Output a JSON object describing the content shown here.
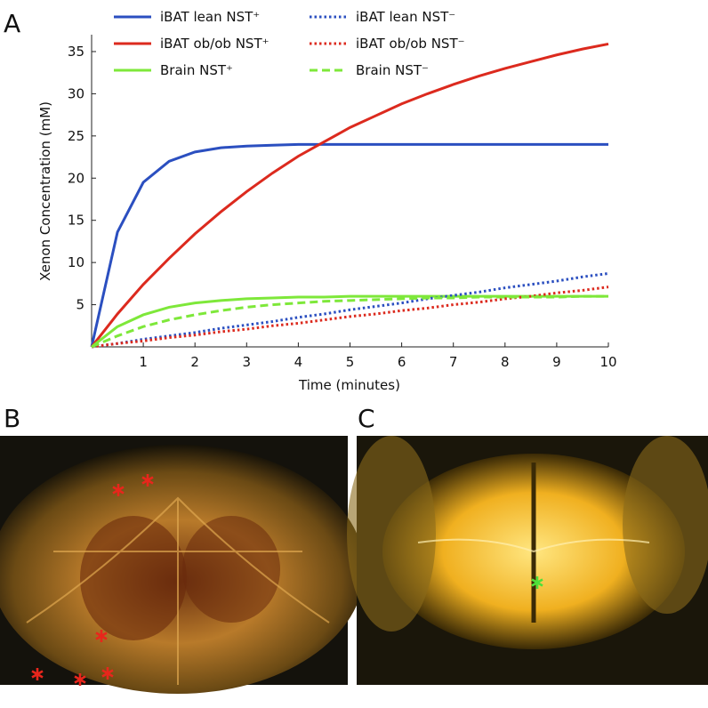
{
  "panels": {
    "a": "A",
    "b": "B",
    "c": "C"
  },
  "chart_data": {
    "type": "line",
    "xlabel": "Time (minutes)",
    "ylabel": "Xenon Concentration (mM)",
    "x": [
      0,
      0.5,
      1,
      1.5,
      2,
      2.5,
      3,
      3.5,
      4,
      4.5,
      5,
      5.5,
      6,
      6.5,
      7,
      7.5,
      8,
      8.5,
      9,
      9.5,
      10
    ],
    "xlim": [
      0,
      10
    ],
    "xticks": [
      1,
      2,
      3,
      4,
      5,
      6,
      7,
      8,
      9,
      10
    ],
    "ylim": [
      0,
      37
    ],
    "yticks": [
      5,
      10,
      15,
      20,
      25,
      30,
      35
    ],
    "series": [
      {
        "name": "iBAT lean NST⁺",
        "color": "#2b4fc0",
        "dash": "solid",
        "values": [
          0,
          13.6,
          19.5,
          22.0,
          23.1,
          23.6,
          23.8,
          23.9,
          24.0,
          24.0,
          24.0,
          24.0,
          24.0,
          24.0,
          24.0,
          24.0,
          24.0,
          24.0,
          24.0,
          24.0,
          24.0
        ]
      },
      {
        "name": "iBAT ob/ob NST⁺",
        "color": "#dc2a1e",
        "dash": "solid",
        "values": [
          0,
          3.9,
          7.4,
          10.5,
          13.4,
          16.0,
          18.4,
          20.6,
          22.6,
          24.3,
          26.0,
          27.4,
          28.8,
          30.0,
          31.1,
          32.1,
          33.0,
          33.8,
          34.6,
          35.3,
          35.9
        ]
      },
      {
        "name": "Brain  NST⁺",
        "color": "#7ee83a",
        "dash": "solid",
        "values": [
          0,
          2.4,
          3.8,
          4.7,
          5.2,
          5.5,
          5.7,
          5.8,
          5.9,
          5.9,
          6.0,
          6.0,
          6.0,
          6.0,
          6.0,
          6.0,
          6.0,
          6.0,
          6.0,
          6.0,
          6.0
        ]
      },
      {
        "name": "iBAT lean NST⁻",
        "color": "#2b4fc0",
        "dash": "dotted",
        "values": [
          0,
          0.4,
          0.9,
          1.3,
          1.7,
          2.2,
          2.6,
          3.0,
          3.5,
          3.9,
          4.4,
          4.8,
          5.2,
          5.7,
          6.1,
          6.5,
          7.0,
          7.4,
          7.8,
          8.3,
          8.7
        ]
      },
      {
        "name": "iBAT ob/ob NST⁻",
        "color": "#dc2a1e",
        "dash": "dotted",
        "values": [
          0,
          0.4,
          0.7,
          1.1,
          1.4,
          1.8,
          2.1,
          2.5,
          2.8,
          3.2,
          3.6,
          3.9,
          4.3,
          4.6,
          5.0,
          5.3,
          5.7,
          6.0,
          6.4,
          6.7,
          7.1
        ]
      },
      {
        "name": "Brain NST⁻",
        "color": "#7ee83a",
        "dash": "dashed",
        "values": [
          0,
          1.3,
          2.4,
          3.2,
          3.8,
          4.3,
          4.7,
          5.0,
          5.2,
          5.4,
          5.5,
          5.6,
          5.7,
          5.8,
          5.8,
          5.9,
          5.9,
          5.9,
          5.9,
          6.0,
          6.0
        ]
      }
    ]
  }
}
